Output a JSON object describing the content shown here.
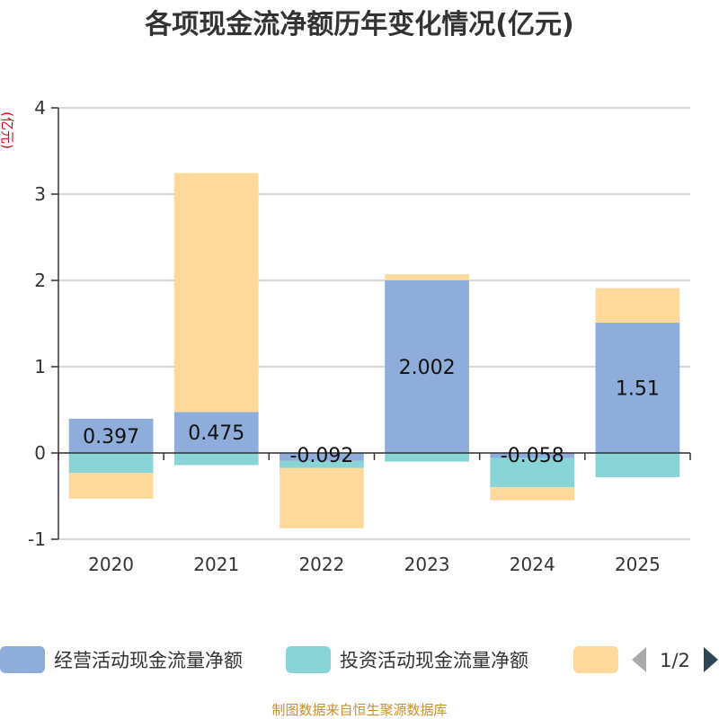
{
  "chart_data": {
    "type": "bar",
    "stacked": true,
    "title": "各项现金流净额历年变化情况(亿元)",
    "ylabel": "(亿元)",
    "categories": [
      "2020",
      "2021",
      "2022",
      "2023",
      "2024",
      "2025"
    ],
    "ylim": [
      -1,
      4
    ],
    "yticks": [
      -1,
      0,
      1,
      2,
      3,
      4
    ],
    "grid": true,
    "series": [
      {
        "name": "经营活动现金流量净额",
        "color": "#8eadda",
        "values": [
          0.397,
          0.475,
          -0.092,
          2.002,
          -0.058,
          1.51
        ],
        "labels": [
          "0.397",
          "0.475",
          "-0.092",
          "2.002",
          "-0.058",
          "1.51"
        ]
      },
      {
        "name": "投资活动现金流量净额",
        "color": "#88d4d6",
        "values": [
          -0.23,
          -0.14,
          -0.08,
          -0.1,
          -0.34,
          -0.28
        ]
      },
      {
        "name": "",
        "color": "#fed99b",
        "values": [
          -0.3,
          2.77,
          -0.7,
          0.07,
          -0.15,
          0.4
        ]
      }
    ],
    "legend_position": "bottom",
    "legend_page": "1/2"
  },
  "source": "制图数据来自恒生聚源数据库"
}
